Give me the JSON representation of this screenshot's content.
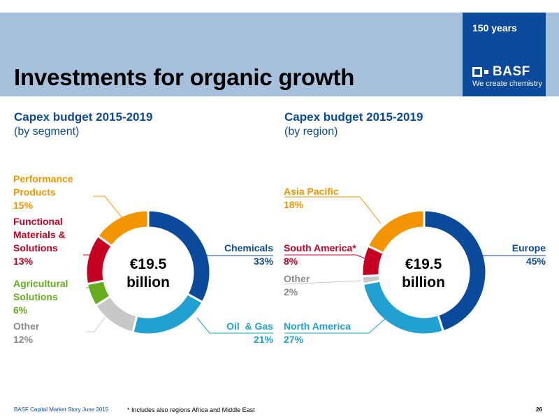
{
  "header": {
    "title": "Investments for organic growth",
    "years": "150 years",
    "logo_text": "BASF",
    "tagline": "We create chemistry"
  },
  "colors": {
    "header_band": "#a7c1dc",
    "brand_blue": "#0b4a9a",
    "chemicals": "#0b4a9a",
    "oil_gas": "#21a0d2",
    "other": "#c8c8c8",
    "agricultural": "#65ac1e",
    "functional": "#c50022",
    "performance": "#f39500"
  },
  "chart_data": [
    {
      "type": "pie",
      "title": "Capex budget 2015-2019",
      "subtitle": "(by segment)",
      "center_value": "€19.5",
      "center_unit": "billion",
      "slices": [
        {
          "label": "Chemicals",
          "value": 33,
          "pct": "33%"
        },
        {
          "label": "Oil  & Gas",
          "value": 21,
          "pct": "21%"
        },
        {
          "label": "Other",
          "value": 12,
          "pct": "12%"
        },
        {
          "label": "Agricultural Solutions",
          "value": 6,
          "pct": "6%"
        },
        {
          "label": "Functional Materials & Solutions",
          "value": 13,
          "pct": "13%"
        },
        {
          "label": "Performance Products",
          "value": 15,
          "pct": "15%"
        }
      ]
    },
    {
      "type": "pie",
      "title": "Capex budget 2015-2019",
      "subtitle": "(by region)",
      "center_value": "€19.5",
      "center_unit": "billion",
      "slices": [
        {
          "label": "Europe",
          "value": 45,
          "pct": "45%"
        },
        {
          "label": "North America",
          "value": 27,
          "pct": "27%"
        },
        {
          "label": "Other",
          "value": 2,
          "pct": "2%"
        },
        {
          "label": "South America*",
          "value": 8,
          "pct": "8%"
        },
        {
          "label": "Asia Pacific",
          "value": 18,
          "pct": "18%"
        }
      ]
    }
  ],
  "labels": {
    "perf_1": "Performance",
    "perf_2": "Products",
    "func_1": "Functional",
    "func_2": "Materials &",
    "func_3": "Solutions",
    "agri_1": "Agricultural",
    "agri_2": "Solutions"
  },
  "footer": {
    "left": "BASF Capital Market Story June 2015",
    "note": "* Includes also regions Africa and Middle East",
    "page": "26"
  }
}
